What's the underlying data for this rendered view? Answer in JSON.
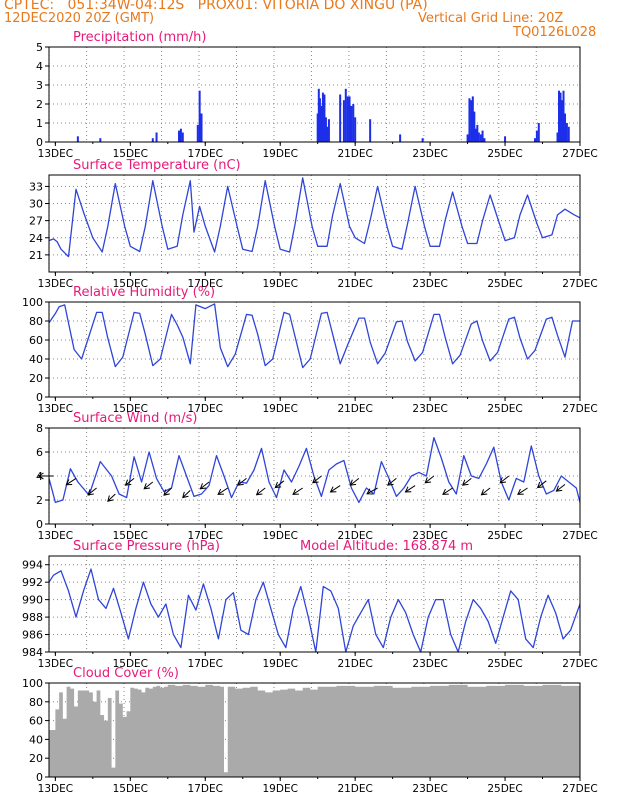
{
  "header": {
    "line1": "CPTEC:   051:34W-04:12S   PROX01: VITORIA DO XINGU (PA)",
    "line2_left": "12DEC2020 20Z (GMT)",
    "line2_right": "Vertical Grid Line: 20Z",
    "line3_right": "TQ0126L028"
  },
  "colors": {
    "header": "#e8791c",
    "title": "#e8197a",
    "series": "#2f45d8",
    "precip": "#1c2ee8",
    "cloud": "#aaaaaa",
    "wind_arrow": "#000000",
    "grid": "#888888"
  },
  "chart_data": [
    {
      "type": "bar",
      "title": "Precipitation (mm/h)",
      "ylim": [
        0,
        5
      ],
      "yticks": [
        0,
        1,
        2,
        3,
        4,
        5
      ],
      "xlim": [
        12.83,
        27.0
      ],
      "xtick_labels": [
        "13DEC",
        "15DEC",
        "17DEC",
        "19DEC",
        "21DEC",
        "23DEC",
        "25DEC",
        "27DEC"
      ],
      "x": [
        13.6,
        14.2,
        15.6,
        15.7,
        16.3,
        16.35,
        16.4,
        16.8,
        16.85,
        16.9,
        20.0,
        20.03,
        20.06,
        20.1,
        20.14,
        20.18,
        20.22,
        20.26,
        20.3,
        20.6,
        20.7,
        20.75,
        20.8,
        20.85,
        20.9,
        20.95,
        21.0,
        21.4,
        22.2,
        22.8,
        24.0,
        24.05,
        24.1,
        24.14,
        24.18,
        24.22,
        24.26,
        24.3,
        24.35,
        24.4,
        24.45,
        25.0,
        25.8,
        25.85,
        25.9,
        26.4,
        26.44,
        26.48,
        26.52,
        26.56,
        26.6,
        26.65,
        26.7
      ],
      "values": [
        0.3,
        0.2,
        0.2,
        0.5,
        0.6,
        0.7,
        0.5,
        0.9,
        2.7,
        1.5,
        1.5,
        2.8,
        2.3,
        1.9,
        2.6,
        2.5,
        1.3,
        0.8,
        1.2,
        2.5,
        2.2,
        2.8,
        2.4,
        2.4,
        1.9,
        2.0,
        1.3,
        1.2,
        0.4,
        0.2,
        0.4,
        2.3,
        2.2,
        2.4,
        1.6,
        0.7,
        0.9,
        0.5,
        0.4,
        0.6,
        0.2,
        0.3,
        0.2,
        0.6,
        1.0,
        0.5,
        2.7,
        2.6,
        2.2,
        2.7,
        1.5,
        1.0,
        0.8
      ]
    },
    {
      "type": "line",
      "title": "Surface Temperature (nC)",
      "ylim": [
        18,
        35
      ],
      "yticks": [
        21,
        24,
        27,
        30,
        33
      ],
      "xlim": [
        12.83,
        27.0
      ],
      "xtick_labels": [
        "13DEC",
        "15DEC",
        "17DEC",
        "19DEC",
        "21DEC",
        "23DEC",
        "25DEC",
        "27DEC"
      ],
      "x": [
        12.83,
        12.95,
        13.05,
        13.15,
        13.35,
        13.55,
        13.75,
        14.0,
        14.25,
        14.4,
        14.6,
        14.85,
        15.0,
        15.25,
        15.4,
        15.6,
        15.85,
        16.0,
        16.25,
        16.4,
        16.6,
        16.7,
        16.85,
        17.0,
        17.25,
        17.4,
        17.6,
        17.85,
        18.0,
        18.25,
        18.4,
        18.6,
        18.85,
        19.0,
        19.25,
        19.4,
        19.6,
        19.85,
        20.0,
        20.25,
        20.4,
        20.6,
        20.85,
        21.0,
        21.25,
        21.4,
        21.6,
        21.85,
        22.0,
        22.25,
        22.4,
        22.6,
        22.85,
        23.0,
        23.25,
        23.4,
        23.6,
        23.85,
        24.0,
        24.25,
        24.4,
        24.6,
        24.85,
        25.0,
        25.25,
        25.4,
        25.6,
        25.85,
        26.0,
        26.25,
        26.4,
        26.6,
        26.85,
        27.0
      ],
      "values": [
        23.5,
        23.8,
        23.3,
        22.0,
        20.7,
        32.5,
        28.5,
        24.0,
        21.5,
        26.0,
        33.5,
        26.0,
        22.5,
        21.6,
        26.0,
        34.0,
        26.0,
        22.0,
        22.5,
        28.0,
        34.0,
        25.0,
        29.5,
        26.0,
        21.5,
        26.0,
        33.0,
        26.0,
        22.0,
        21.6,
        26.0,
        34.0,
        26.0,
        22.0,
        21.5,
        26.5,
        34.5,
        26.0,
        22.5,
        22.5,
        28.0,
        33.5,
        26.0,
        24.0,
        23.0,
        27.0,
        33.0,
        26.0,
        22.5,
        22.0,
        26.5,
        33.0,
        26.0,
        22.5,
        22.5,
        27.0,
        32.0,
        26.0,
        23.0,
        23.0,
        27.0,
        31.5,
        26.5,
        23.5,
        24.0,
        28.0,
        31.5,
        26.5,
        24.0,
        24.5,
        28.0,
        29.0,
        28.0,
        27.5
      ]
    },
    {
      "type": "line",
      "title": "Relative Humidity (%)",
      "ylim": [
        0,
        100
      ],
      "yticks": [
        0,
        20,
        40,
        60,
        80,
        100
      ],
      "xlim": [
        12.83,
        27.0
      ],
      "xtick_labels": [
        "13DEC",
        "15DEC",
        "17DEC",
        "19DEC",
        "21DEC",
        "23DEC",
        "25DEC",
        "27DEC"
      ],
      "x": [
        12.83,
        13.0,
        13.1,
        13.25,
        13.5,
        13.7,
        14.1,
        14.25,
        14.4,
        14.6,
        14.8,
        15.1,
        15.25,
        15.4,
        15.6,
        15.8,
        16.1,
        16.25,
        16.4,
        16.6,
        16.75,
        17.0,
        17.25,
        17.4,
        17.6,
        17.8,
        18.1,
        18.25,
        18.4,
        18.6,
        18.8,
        19.1,
        19.25,
        19.4,
        19.6,
        19.8,
        20.1,
        20.25,
        20.4,
        20.6,
        20.8,
        21.1,
        21.25,
        21.4,
        21.6,
        21.8,
        22.1,
        22.25,
        22.4,
        22.6,
        22.8,
        23.1,
        23.25,
        23.4,
        23.6,
        23.8,
        24.1,
        24.25,
        24.4,
        24.6,
        24.8,
        25.1,
        25.25,
        25.4,
        25.6,
        25.8,
        26.1,
        26.25,
        26.4,
        26.6,
        26.8,
        27.0
      ],
      "values": [
        78,
        88,
        95,
        97,
        50,
        40,
        89,
        89,
        62,
        32,
        42,
        89,
        88,
        66,
        33,
        40,
        87,
        76,
        63,
        35,
        97,
        93,
        98,
        52,
        32,
        45,
        87,
        86,
        66,
        33,
        40,
        89,
        87,
        63,
        31,
        40,
        88,
        89,
        66,
        35,
        55,
        83,
        83,
        58,
        35,
        46,
        79,
        80,
        58,
        38,
        47,
        87,
        87,
        63,
        35,
        44,
        77,
        80,
        59,
        38,
        47,
        82,
        84,
        62,
        40,
        49,
        82,
        84,
        65,
        42,
        80,
        80
      ]
    },
    {
      "type": "line",
      "title": "Surface Wind (m/s)",
      "ylim": [
        0,
        8
      ],
      "yticks": [
        0,
        2,
        4,
        6,
        8
      ],
      "xlim": [
        12.83,
        27.0
      ],
      "xtick_labels": [
        "13DEC",
        "15DEC",
        "17DEC",
        "19DEC",
        "21DEC",
        "23DEC",
        "25DEC",
        "27DEC"
      ],
      "x": [
        12.83,
        13.0,
        13.2,
        13.4,
        13.6,
        13.9,
        14.2,
        14.5,
        14.7,
        14.9,
        15.1,
        15.3,
        15.5,
        15.7,
        15.9,
        16.1,
        16.3,
        16.5,
        16.7,
        16.9,
        17.1,
        17.3,
        17.5,
        17.7,
        17.9,
        18.1,
        18.3,
        18.5,
        18.7,
        18.9,
        19.1,
        19.3,
        19.5,
        19.7,
        19.9,
        20.1,
        20.3,
        20.5,
        20.7,
        20.9,
        21.1,
        21.3,
        21.5,
        21.7,
        21.9,
        22.1,
        22.3,
        22.5,
        22.7,
        22.9,
        23.1,
        23.3,
        23.5,
        23.7,
        23.9,
        24.1,
        24.3,
        24.5,
        24.7,
        24.9,
        25.1,
        25.3,
        25.5,
        25.7,
        25.9,
        26.1,
        26.3,
        26.5,
        26.7,
        26.9,
        27.0
      ],
      "values": [
        3.8,
        1.8,
        2.0,
        4.6,
        3.5,
        2.4,
        5.2,
        4.0,
        2.5,
        2.2,
        5.6,
        3.5,
        6.0,
        3.8,
        2.7,
        3.0,
        5.7,
        4.0,
        2.3,
        2.5,
        3.2,
        5.7,
        4.0,
        2.2,
        3.5,
        3.4,
        4.5,
        6.3,
        3.5,
        2.2,
        4.5,
        3.5,
        4.8,
        6.3,
        4.0,
        2.3,
        4.5,
        5.0,
        5.3,
        3.0,
        1.8,
        3.0,
        2.5,
        5.2,
        3.8,
        2.3,
        3.0,
        4.0,
        4.3,
        4.0,
        7.2,
        5.5,
        3.5,
        2.5,
        5.7,
        4.0,
        3.8,
        5.0,
        6.4,
        3.5,
        2.0,
        3.8,
        3.5,
        6.5,
        4.0,
        2.5,
        2.8,
        4.0,
        3.5,
        3.0,
        1.8
      ],
      "wind_barbs": {
        "x": [
          12.95,
          13.55,
          14.1,
          14.6,
          15.1,
          15.6,
          16.1,
          16.6,
          17.1,
          17.6,
          18.1,
          18.6,
          19.1,
          19.6,
          20.1,
          20.6,
          21.1,
          21.6,
          22.1,
          22.6,
          23.1,
          23.6,
          24.1,
          24.6,
          25.1,
          25.6,
          26.1,
          26.6
        ],
        "speed": [
          4.0,
          3.8,
          3.0,
          2.5,
          3.8,
          3.5,
          3.0,
          2.8,
          3.5,
          3.0,
          3.8,
          3.0,
          3.6,
          3.0,
          4.0,
          3.2,
          3.8,
          3.0,
          3.8,
          3.2,
          4.0,
          3.0,
          3.8,
          3.0,
          4.0,
          3.0,
          3.6,
          3.3
        ],
        "direction_deg": [
          90,
          40,
          35,
          30,
          35,
          35,
          30,
          30,
          35,
          40,
          35,
          35,
          35,
          40,
          35,
          40,
          35,
          45,
          35,
          40,
          35,
          40,
          35,
          35,
          35,
          40,
          35,
          35
        ]
      }
    },
    {
      "type": "line",
      "title": "Surface Pressure (hPa)",
      "annotation": "Model Altitude: 168.874 m",
      "ylim": [
        984,
        995
      ],
      "yticks": [
        984,
        986,
        988,
        990,
        992,
        994
      ],
      "xlim": [
        12.83,
        27.0
      ],
      "xtick_labels": [
        "13DEC",
        "15DEC",
        "17DEC",
        "19DEC",
        "21DEC",
        "23DEC",
        "25DEC",
        "27DEC"
      ],
      "x": [
        12.83,
        12.95,
        13.15,
        13.35,
        13.55,
        13.75,
        13.95,
        14.15,
        14.35,
        14.55,
        14.75,
        14.95,
        15.15,
        15.35,
        15.55,
        15.75,
        15.95,
        16.15,
        16.35,
        16.55,
        16.75,
        16.95,
        17.15,
        17.35,
        17.55,
        17.75,
        17.95,
        18.15,
        18.35,
        18.55,
        18.75,
        18.95,
        19.15,
        19.35,
        19.55,
        19.75,
        19.95,
        20.15,
        20.35,
        20.55,
        20.75,
        20.95,
        21.15,
        21.35,
        21.55,
        21.75,
        21.95,
        22.15,
        22.35,
        22.55,
        22.75,
        22.95,
        23.15,
        23.35,
        23.55,
        23.75,
        23.95,
        24.15,
        24.35,
        24.55,
        24.75,
        24.95,
        25.15,
        25.35,
        25.55,
        25.75,
        25.95,
        26.15,
        26.35,
        26.55,
        26.75,
        27.0
      ],
      "values": [
        992.0,
        992.8,
        993.3,
        991.0,
        988.0,
        991.0,
        993.5,
        990.0,
        989.0,
        991.3,
        988.5,
        985.5,
        989.0,
        992.0,
        989.5,
        988.0,
        989.5,
        986.0,
        984.5,
        990.5,
        988.8,
        991.8,
        989.0,
        985.5,
        990.0,
        990.8,
        986.5,
        986.0,
        990.0,
        992.0,
        989.0,
        986.0,
        984.5,
        989.0,
        991.5,
        988.0,
        984.0,
        991.5,
        991.0,
        989.0,
        984.0,
        987.0,
        988.5,
        990.0,
        986.0,
        984.5,
        988.0,
        990.0,
        988.5,
        986.0,
        984.0,
        988.0,
        990.0,
        990.0,
        986.0,
        984.0,
        987.5,
        990.0,
        989.0,
        987.5,
        985.0,
        988.0,
        991.0,
        990.0,
        985.5,
        984.5,
        988.0,
        990.5,
        988.5,
        985.5,
        986.5,
        989.5
      ]
    },
    {
      "type": "area",
      "title": "Cloud Cover (%)",
      "ylim": [
        0,
        100
      ],
      "yticks": [
        0,
        20,
        40,
        60,
        80,
        100
      ],
      "xlim": [
        12.83,
        27.0
      ],
      "xtick_labels": [
        "13DEC",
        "15DEC",
        "17DEC",
        "19DEC",
        "21DEC",
        "23DEC",
        "25DEC",
        "27DEC"
      ],
      "x": [
        12.83,
        13.0,
        13.1,
        13.2,
        13.3,
        13.4,
        13.5,
        13.6,
        13.7,
        13.8,
        13.9,
        14.0,
        14.1,
        14.2,
        14.3,
        14.4,
        14.5,
        14.6,
        14.7,
        14.8,
        14.9,
        15.0,
        15.1,
        15.2,
        15.3,
        15.4,
        15.5,
        15.6,
        15.7,
        15.8,
        15.9,
        16.0,
        16.2,
        16.4,
        16.6,
        16.8,
        17.0,
        17.2,
        17.4,
        17.5,
        17.6,
        17.8,
        18.0,
        18.2,
        18.4,
        18.6,
        18.8,
        19.0,
        19.2,
        19.4,
        19.6,
        19.8,
        20.0,
        20.5,
        21.0,
        21.5,
        22.0,
        22.5,
        23.0,
        23.5,
        24.0,
        24.5,
        25.0,
        25.5,
        26.0,
        26.5,
        27.0
      ],
      "values": [
        50,
        72,
        90,
        62,
        96,
        94,
        75,
        92,
        92,
        92,
        90,
        80,
        92,
        66,
        60,
        84,
        10,
        92,
        78,
        64,
        70,
        95,
        94,
        93,
        90,
        95,
        94,
        96,
        97,
        95,
        96,
        98,
        97,
        98,
        97,
        96,
        98,
        97,
        96,
        5,
        96,
        94,
        95,
        96,
        92,
        90,
        92,
        93,
        94,
        92,
        95,
        93,
        96,
        97,
        96,
        97,
        95,
        96,
        97,
        98,
        96,
        97,
        98,
        97,
        98,
        97,
        97
      ]
    }
  ]
}
